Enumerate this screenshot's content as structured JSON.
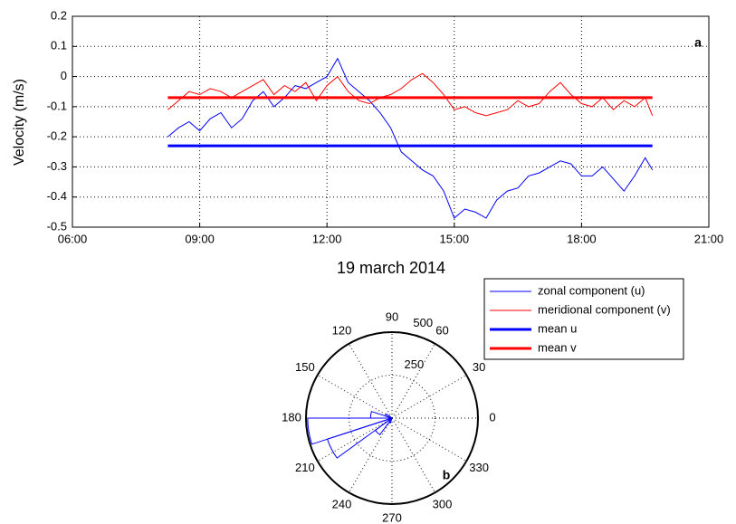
{
  "chart_data": [
    {
      "type": "line",
      "y_label": "Velocity (m/s)",
      "x_label": "19 march 2014",
      "annotation": "a",
      "xlim": [
        6,
        21
      ],
      "xticks": [
        {
          "value": 6,
          "label": "06:00"
        },
        {
          "value": 9,
          "label": "09:00"
        },
        {
          "value": 12,
          "label": "12:00"
        },
        {
          "value": 15,
          "label": "15:00"
        },
        {
          "value": 18,
          "label": "18:00"
        },
        {
          "value": 21,
          "label": "21:00"
        }
      ],
      "ylim": [
        -0.5,
        0.2
      ],
      "yticks": [
        0.2,
        0.1,
        0,
        -0.1,
        -0.2,
        -0.3,
        -0.4,
        -0.5
      ],
      "grid": true,
      "x": [
        8.25,
        8.5,
        8.75,
        9,
        9.25,
        9.5,
        9.75,
        10,
        10.25,
        10.5,
        10.75,
        11,
        11.25,
        11.5,
        11.75,
        12,
        12.25,
        12.5,
        12.75,
        13,
        13.25,
        13.5,
        13.75,
        14,
        14.25,
        14.5,
        14.75,
        15,
        15.25,
        15.5,
        15.75,
        16,
        16.25,
        16.5,
        16.75,
        17,
        17.25,
        17.5,
        17.75,
        18,
        18.25,
        18.5,
        18.75,
        19,
        19.25,
        19.5,
        19.67
      ],
      "series": [
        {
          "name": "zonal component (u)",
          "color": "#0000ff",
          "width": 1,
          "values": [
            -0.2,
            -0.17,
            -0.15,
            -0.18,
            -0.14,
            -0.12,
            -0.17,
            -0.14,
            -0.08,
            -0.05,
            -0.1,
            -0.07,
            -0.03,
            -0.04,
            -0.02,
            0.0,
            0.06,
            -0.02,
            -0.05,
            -0.08,
            -0.12,
            -0.17,
            -0.25,
            -0.28,
            -0.31,
            -0.33,
            -0.38,
            -0.47,
            -0.44,
            -0.45,
            -0.47,
            -0.41,
            -0.38,
            -0.37,
            -0.33,
            -0.32,
            -0.3,
            -0.28,
            -0.29,
            -0.33,
            -0.33,
            -0.3,
            -0.34,
            -0.38,
            -0.33,
            -0.27,
            -0.31
          ]
        },
        {
          "name": "meridional component (v)",
          "color": "#ff0000",
          "width": 1,
          "values": [
            -0.11,
            -0.08,
            -0.05,
            -0.06,
            -0.04,
            -0.05,
            -0.07,
            -0.05,
            -0.03,
            -0.01,
            -0.06,
            -0.03,
            -0.05,
            -0.02,
            -0.08,
            -0.03,
            0.0,
            -0.05,
            -0.08,
            -0.09,
            -0.07,
            -0.06,
            -0.04,
            -0.01,
            0.01,
            -0.02,
            -0.06,
            -0.11,
            -0.1,
            -0.12,
            -0.13,
            -0.12,
            -0.11,
            -0.08,
            -0.1,
            -0.09,
            -0.05,
            -0.02,
            -0.06,
            -0.09,
            -0.1,
            -0.07,
            -0.11,
            -0.08,
            -0.1,
            -0.07,
            -0.13
          ]
        },
        {
          "name": "mean u",
          "color": "#0000ff",
          "width": 3,
          "x": [
            8.25,
            19.67
          ],
          "values": [
            -0.23,
            -0.23
          ]
        },
        {
          "name": "mean v",
          "color": "#ff0000",
          "width": 3,
          "x": [
            8.25,
            19.67
          ],
          "values": [
            -0.07,
            -0.07
          ]
        }
      ]
    },
    {
      "type": "polar_histogram",
      "annotation": "b",
      "color": "#0000ff",
      "bins": [
        144,
        162,
        180,
        198,
        216,
        234,
        252
      ],
      "counts": [
        40,
        125,
        490,
        395,
        120,
        30
      ],
      "rlim": [
        0,
        500
      ],
      "rticks": [
        250,
        500
      ],
      "thetaticks": [
        0,
        30,
        60,
        90,
        120,
        150,
        180,
        210,
        240,
        270,
        300,
        330
      ]
    }
  ]
}
